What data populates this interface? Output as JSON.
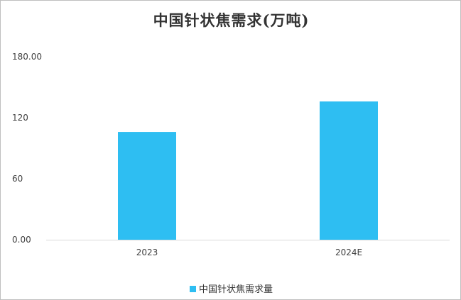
{
  "chart_data": {
    "type": "bar",
    "title": "中国针状焦需求(万吨)",
    "categories": [
      "2023",
      "2024E"
    ],
    "series": [
      {
        "name": "中国针状焦需求量",
        "values": [
          106,
          136
        ],
        "color": "#2EBEF2"
      }
    ],
    "ylim": [
      0,
      180
    ],
    "yticks": [
      0,
      60,
      120,
      180
    ],
    "ytick_labels": [
      "0.00",
      "60",
      "120",
      "180.00"
    ],
    "grid": false,
    "legend": "bottom",
    "xlabel": "",
    "ylabel": ""
  }
}
